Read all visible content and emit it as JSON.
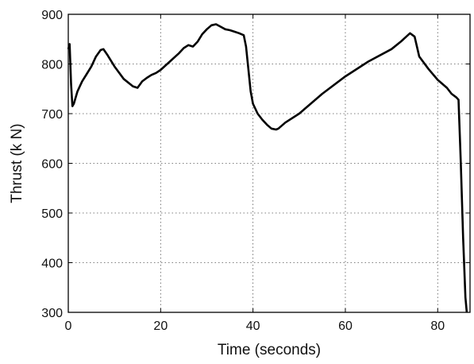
{
  "chart_data": {
    "type": "line",
    "title": "",
    "xlabel": "Time  (seconds)",
    "ylabel": "Thrust (k N)",
    "xlim": [
      0,
      87
    ],
    "ylim": [
      300,
      900
    ],
    "xticks": [
      0,
      20,
      40,
      60,
      80
    ],
    "yticks": [
      300,
      400,
      500,
      600,
      700,
      800,
      900
    ],
    "grid": true,
    "legend": "none",
    "series": [
      {
        "color": "#000000",
        "x": [
          0,
          0.3,
          0.6,
          0.9,
          1.2,
          2,
          3,
          4,
          5,
          6,
          7,
          7.6,
          8.5,
          10,
          12,
          14,
          15,
          16,
          17,
          18,
          19,
          20,
          22,
          24,
          25,
          26,
          27,
          28,
          29,
          30,
          31,
          32,
          33,
          34,
          35,
          36,
          37,
          38,
          38.5,
          39,
          39.5,
          40,
          41,
          42,
          43,
          44,
          45,
          45.5,
          47,
          50,
          55,
          60,
          65,
          70,
          72,
          74,
          75,
          76,
          78,
          80,
          82,
          83,
          84,
          84.5,
          85,
          85.5,
          86,
          86.3
        ],
        "y": [
          830,
          840,
          760,
          715,
          720,
          745,
          765,
          780,
          795,
          815,
          828,
          830,
          818,
          795,
          770,
          755,
          752,
          765,
          772,
          778,
          782,
          788,
          805,
          822,
          832,
          838,
          835,
          845,
          860,
          870,
          878,
          880,
          875,
          870,
          868,
          865,
          862,
          858,
          835,
          790,
          745,
          720,
          700,
          688,
          678,
          670,
          668,
          670,
          682,
          700,
          740,
          775,
          805,
          830,
          845,
          862,
          855,
          815,
          790,
          768,
          752,
          740,
          733,
          728,
          600,
          450,
          330,
          300
        ]
      }
    ]
  }
}
